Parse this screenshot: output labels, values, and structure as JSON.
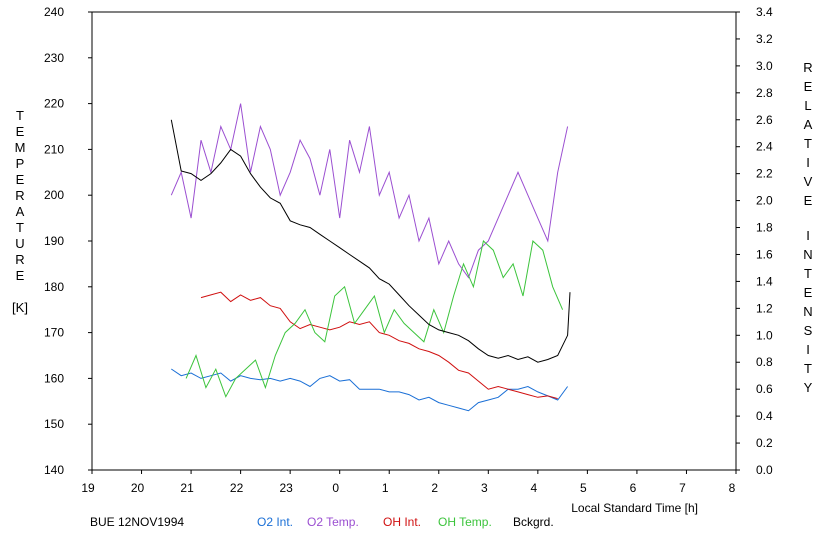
{
  "chart_data": {
    "type": "line",
    "left_axis": {
      "label": "TEMPERATURE",
      "unit": "[K]",
      "ticks": [
        "140",
        "150",
        "160",
        "170",
        "180",
        "190",
        "200",
        "210",
        "220",
        "230",
        "240"
      ],
      "ylim": [
        140,
        240
      ]
    },
    "right_axis": {
      "label": "RELATIVE INTENSITY",
      "ticks": [
        "0.0",
        "0.2",
        "0.4",
        "0.6",
        "0.8",
        "1.0",
        "1.2",
        "1.4",
        "1.6",
        "1.8",
        "2.0",
        "2.2",
        "2.4",
        "2.6",
        "2.8",
        "3.0",
        "3.2",
        "3.4"
      ],
      "ylim": [
        0.0,
        3.4
      ]
    },
    "x_axis": {
      "label": "Local Standard Time [h]",
      "ticks": [
        "19",
        "20",
        "21",
        "22",
        "23",
        "0",
        "1",
        "2",
        "3",
        "4",
        "5",
        "6",
        "7",
        "8"
      ],
      "xlim": [
        19,
        32
      ]
    },
    "footer_title": "BUE 12NOV1994",
    "series": [
      {
        "name": "O2 Int.",
        "color": "#1a6fd6",
        "axis": "right",
        "x": [
          20.6,
          20.8,
          21.0,
          21.2,
          21.4,
          21.6,
          21.8,
          22.0,
          22.2,
          22.4,
          22.6,
          22.8,
          23.0,
          23.2,
          23.4,
          23.6,
          23.8,
          24.0,
          24.2,
          24.4,
          24.6,
          24.8,
          25.0,
          25.2,
          25.4,
          25.6,
          25.8,
          26.0,
          26.2,
          26.4,
          26.6,
          26.8,
          27.0,
          27.2,
          27.4,
          27.6,
          27.8,
          28.0,
          28.2,
          28.4,
          28.6
        ],
        "y": [
          0.75,
          0.7,
          0.72,
          0.68,
          0.7,
          0.72,
          0.66,
          0.7,
          0.68,
          0.67,
          0.68,
          0.66,
          0.68,
          0.66,
          0.62,
          0.68,
          0.7,
          0.66,
          0.67,
          0.6,
          0.6,
          0.6,
          0.58,
          0.58,
          0.56,
          0.52,
          0.54,
          0.5,
          0.48,
          0.46,
          0.44,
          0.5,
          0.52,
          0.54,
          0.6,
          0.6,
          0.62,
          0.58,
          0.55,
          0.52,
          0.62
        ]
      },
      {
        "name": "O2 Temp.",
        "color": "#9b4fd1",
        "axis": "left",
        "x": [
          20.6,
          20.8,
          21.0,
          21.2,
          21.4,
          21.6,
          21.8,
          22.0,
          22.2,
          22.4,
          22.6,
          22.8,
          23.0,
          23.2,
          23.4,
          23.6,
          23.8,
          24.0,
          24.2,
          24.4,
          24.6,
          24.8,
          25.0,
          25.2,
          25.4,
          25.6,
          25.8,
          26.0,
          26.2,
          26.4,
          26.6,
          26.8,
          27.0,
          27.2,
          27.4,
          27.6,
          27.8,
          28.0,
          28.2,
          28.4,
          28.6
        ],
        "y": [
          200,
          205,
          195,
          212,
          205,
          215,
          210,
          220,
          205,
          215,
          210,
          200,
          205,
          212,
          208,
          200,
          210,
          195,
          212,
          205,
          215,
          200,
          205,
          195,
          200,
          190,
          195,
          185,
          190,
          185,
          182,
          188,
          190,
          195,
          200,
          205,
          200,
          195,
          190,
          205,
          215
        ]
      },
      {
        "name": "OH Int.",
        "color": "#d01010",
        "axis": "right",
        "x": [
          21.2,
          21.4,
          21.6,
          21.8,
          22.0,
          22.2,
          22.4,
          22.6,
          22.8,
          23.0,
          23.2,
          23.4,
          23.6,
          23.8,
          24.0,
          24.2,
          24.4,
          24.6,
          24.8,
          25.0,
          25.2,
          25.4,
          25.6,
          25.8,
          26.0,
          26.2,
          26.4,
          26.6,
          26.8,
          27.0,
          27.2,
          27.4,
          27.6,
          27.8,
          28.0,
          28.2,
          28.4
        ],
        "y": [
          1.28,
          1.3,
          1.32,
          1.25,
          1.3,
          1.26,
          1.28,
          1.22,
          1.2,
          1.1,
          1.05,
          1.08,
          1.06,
          1.04,
          1.06,
          1.1,
          1.08,
          1.1,
          1.02,
          1.0,
          0.96,
          0.94,
          0.9,
          0.88,
          0.85,
          0.8,
          0.74,
          0.72,
          0.66,
          0.6,
          0.62,
          0.6,
          0.58,
          0.56,
          0.54,
          0.55,
          0.53
        ]
      },
      {
        "name": "OH Temp.",
        "color": "#3cc43c",
        "axis": "left",
        "x": [
          20.9,
          21.1,
          21.3,
          21.5,
          21.7,
          21.9,
          22.1,
          22.3,
          22.5,
          22.7,
          22.9,
          23.1,
          23.3,
          23.5,
          23.7,
          23.9,
          24.1,
          24.3,
          24.5,
          24.7,
          24.9,
          25.1,
          25.3,
          25.5,
          25.7,
          25.9,
          26.1,
          26.3,
          26.5,
          26.7,
          26.9,
          27.1,
          27.3,
          27.5,
          27.7,
          27.9,
          28.1,
          28.3,
          28.5
        ],
        "y": [
          160,
          165,
          158,
          162,
          156,
          160,
          162,
          164,
          158,
          165,
          170,
          172,
          175,
          170,
          168,
          178,
          180,
          172,
          175,
          178,
          170,
          175,
          172,
          170,
          168,
          175,
          170,
          178,
          185,
          180,
          190,
          188,
          182,
          185,
          178,
          190,
          188,
          180,
          175
        ]
      },
      {
        "name": "Bckgrd.",
        "color": "#000000",
        "axis": "right",
        "x": [
          20.6,
          20.8,
          21.0,
          21.2,
          21.4,
          21.6,
          21.8,
          22.0,
          22.2,
          22.4,
          22.6,
          22.8,
          23.0,
          23.2,
          23.4,
          23.6,
          23.8,
          24.0,
          24.2,
          24.4,
          24.6,
          24.8,
          25.0,
          25.2,
          25.4,
          25.6,
          25.8,
          26.0,
          26.2,
          26.4,
          26.6,
          26.8,
          27.0,
          27.2,
          27.4,
          27.6,
          27.8,
          28.0,
          28.2,
          28.4,
          28.6,
          28.65
        ],
        "y": [
          2.6,
          2.22,
          2.2,
          2.15,
          2.2,
          2.28,
          2.38,
          2.33,
          2.2,
          2.1,
          2.02,
          1.98,
          1.85,
          1.82,
          1.8,
          1.75,
          1.7,
          1.65,
          1.6,
          1.55,
          1.5,
          1.42,
          1.38,
          1.3,
          1.22,
          1.15,
          1.08,
          1.04,
          1.02,
          1.0,
          0.96,
          0.9,
          0.85,
          0.83,
          0.85,
          0.82,
          0.84,
          0.8,
          0.82,
          0.85,
          1.0,
          1.32
        ]
      }
    ]
  }
}
